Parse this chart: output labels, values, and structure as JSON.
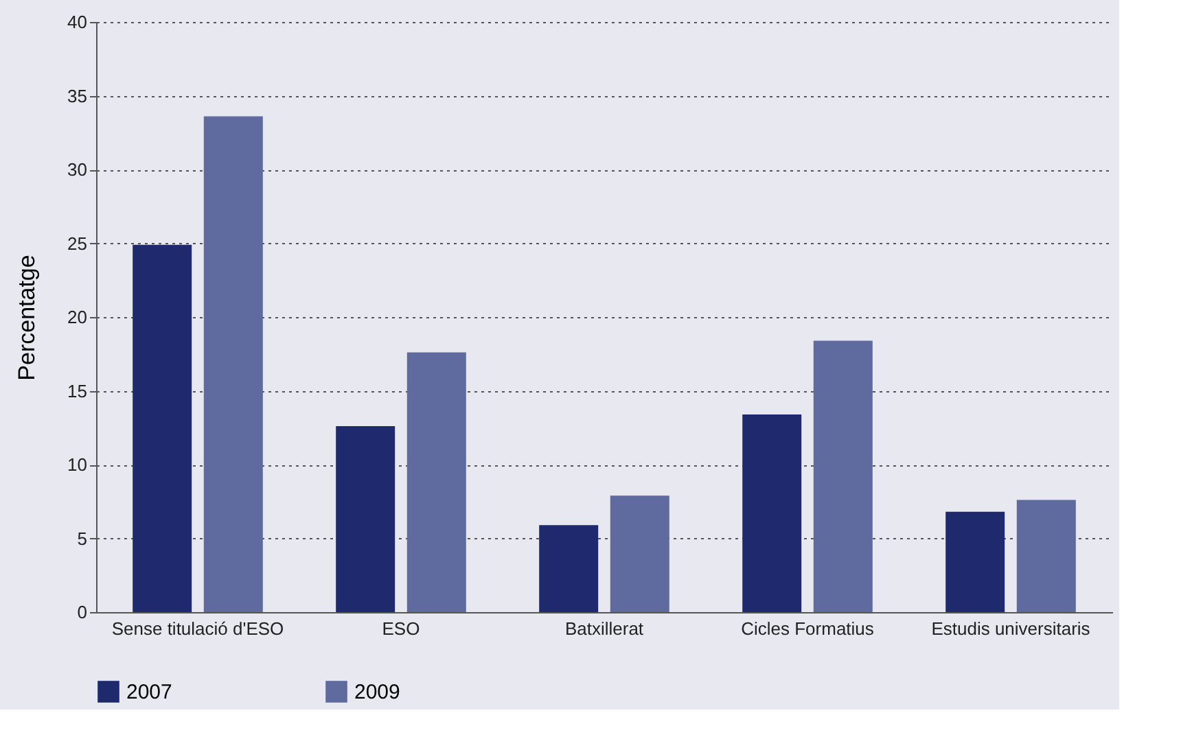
{
  "chart_data": {
    "type": "bar",
    "ylabel": "Percentatge",
    "categories": [
      "Sense titulació d'ESO",
      "ESO",
      "Batxillerat",
      "Cicles Formatius",
      "Estudis universitaris"
    ],
    "series": [
      {
        "name": "2007",
        "color": "#1f2a6e",
        "values": [
          24.9,
          12.6,
          5.9,
          13.4,
          6.8
        ]
      },
      {
        "name": "2009",
        "color": "#5f6a9e",
        "values": [
          33.6,
          17.6,
          7.9,
          18.4,
          7.6
        ]
      }
    ],
    "ylim": [
      0,
      40
    ],
    "yticks": [
      0,
      5,
      10,
      15,
      20,
      25,
      30,
      35,
      40
    ],
    "grid": "y",
    "legend": "bottom"
  }
}
